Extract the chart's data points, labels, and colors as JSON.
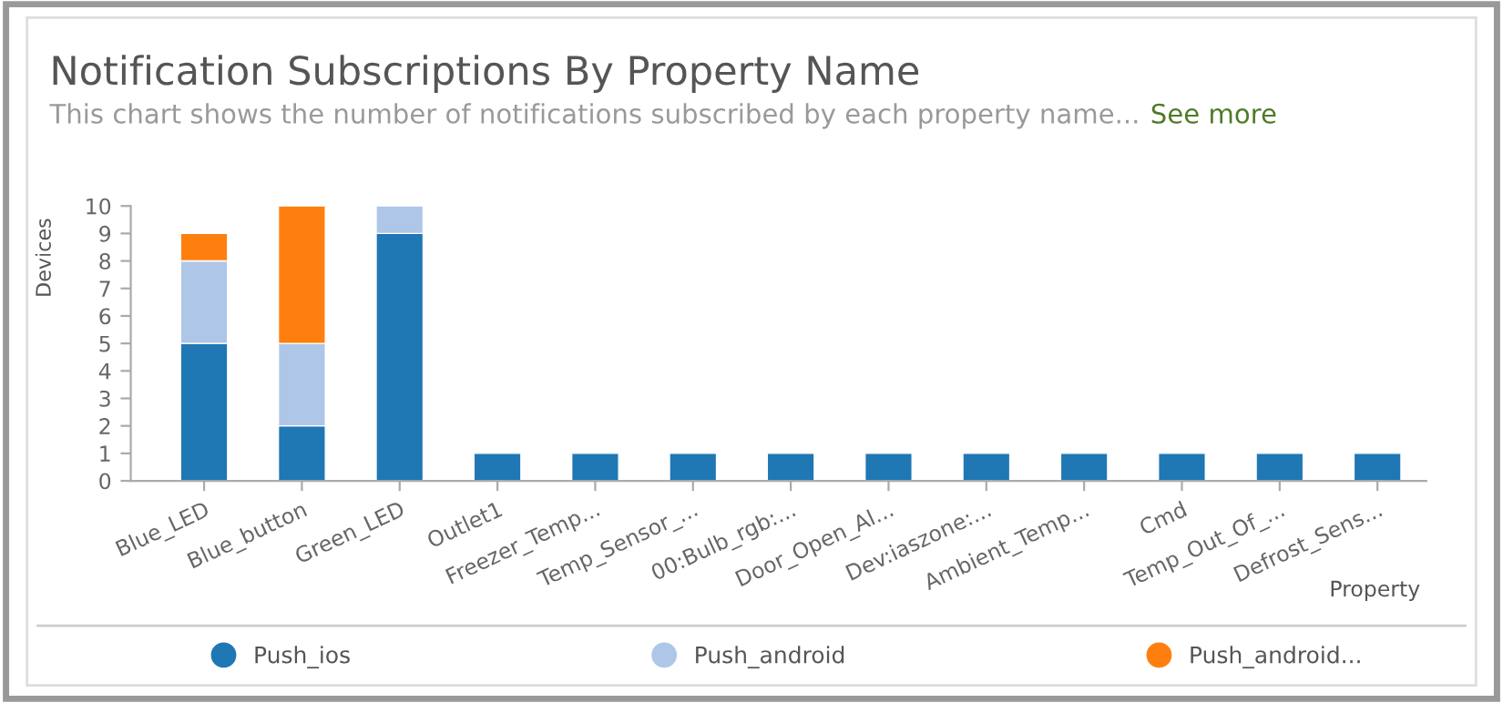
{
  "chart_data": {
    "type": "bar",
    "title": "Notification Subscriptions By Property Name",
    "subtitle": "This chart shows the number of notifications subscribed by each property name...",
    "annotations": [
      "See more"
    ],
    "xlabel": "Property",
    "ylabel": "Devices",
    "categories": [
      "Blue_LED",
      "Blue_button",
      "Green_LED",
      "Outlet1",
      "Freezer_Temp...",
      "Temp_Sensor_...",
      "00:Bulb_rgb:...",
      "Door_Open_Al...",
      "Dev:iaszone:...",
      "Ambient_Temp...",
      "Cmd",
      "Temp_Out_Of_...",
      "Defrost_Sens..."
    ],
    "series": [
      {
        "name": "Push_ios",
        "color": "#1f77b4",
        "values": [
          5,
          2,
          9,
          1,
          1,
          1,
          1,
          1,
          1,
          1,
          1,
          1,
          1
        ]
      },
      {
        "name": "Push_android",
        "color": "#aec7e8",
        "values": [
          3,
          3,
          1,
          null,
          null,
          null,
          null,
          null,
          null,
          null,
          null,
          null,
          null
        ]
      },
      {
        "name": "Push_android...",
        "color": "#ff7f0e",
        "values": [
          1,
          5,
          null,
          null,
          null,
          null,
          null,
          null,
          null,
          null,
          null,
          null,
          null
        ]
      }
    ],
    "stacked": true,
    "ylim": [
      0,
      10
    ],
    "yticks": [
      0,
      1,
      2,
      3,
      4,
      5,
      6,
      7,
      8,
      9,
      10
    ],
    "grid": false,
    "legend": "bottom"
  }
}
